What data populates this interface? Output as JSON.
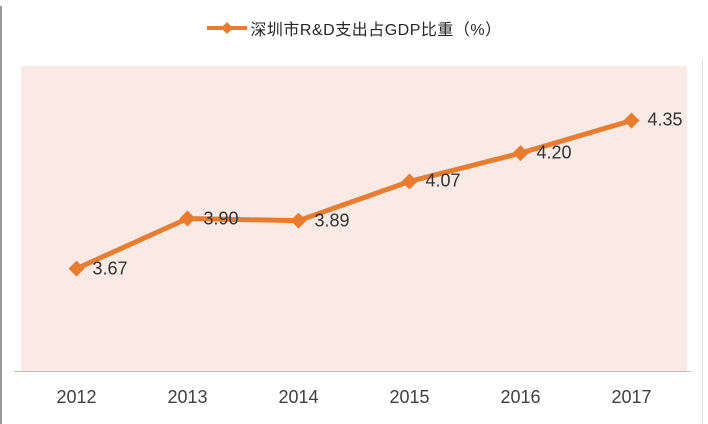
{
  "legend": {
    "label": "深圳市R&D支出占GDP比重（%）"
  },
  "chart_data": {
    "type": "line",
    "title": "深圳市R&D支出占GDP比重（%）",
    "categories": [
      "2012",
      "2013",
      "2014",
      "2015",
      "2016",
      "2017"
    ],
    "values": [
      3.67,
      3.9,
      3.89,
      4.07,
      4.2,
      4.35
    ],
    "point_labels": [
      "3.67",
      "3.90",
      "3.89",
      "4.07",
      "4.20",
      "4.35"
    ],
    "xlabel": "",
    "ylabel": "",
    "ylim": [
      3.2,
      4.6
    ],
    "grid": false,
    "legend_position": "top-center",
    "colors": {
      "series": "#E87D31",
      "plot_background": "#FAEAE5",
      "axis_line": "#BFBFBF",
      "data_label_text": "#333333",
      "tick_label_text": "#404040",
      "legend_text": "#262626"
    }
  }
}
